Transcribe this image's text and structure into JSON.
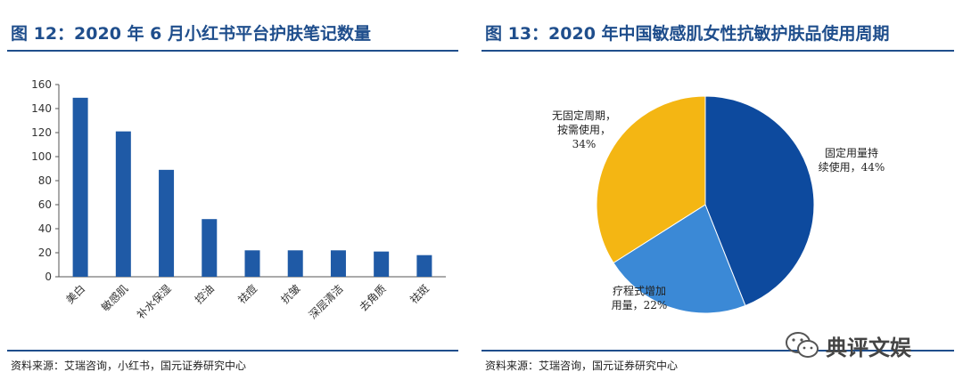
{
  "left": {
    "title": "图 12：2020 年 6 月小红书平台护肤笔记数量",
    "source": "资料来源：艾瑞咨询，小红书，国元证券研究中心"
  },
  "right": {
    "title": "图 13：2020 年中国敏感肌女性抗敏护肤品使用周期",
    "source": "资料来源：艾瑞咨询，国元证券研究中心"
  },
  "watermark": {
    "text": "典评文娱",
    "icon": "wechat-icon"
  },
  "colors": {
    "title": "#1f4e8c",
    "bar": "#1f5aa6",
    "pie1": "#0d4a9e",
    "pie2": "#3b89d6",
    "pie3": "#f4b613"
  },
  "chart_data": [
    {
      "type": "bar",
      "title": "",
      "categories": [
        "美白",
        "敏感肌",
        "补水保湿",
        "控油",
        "祛痘",
        "抗皱",
        "深层清洁",
        "去角质",
        "祛斑"
      ],
      "values": [
        149,
        121,
        89,
        48,
        22,
        22,
        22,
        21,
        18
      ],
      "yticks": [
        "0",
        "20",
        "40",
        "60",
        "80",
        "100",
        "120",
        "140",
        "160"
      ],
      "ylim": [
        0,
        160
      ],
      "grid": false,
      "legend": "none"
    },
    {
      "type": "pie",
      "title": "",
      "slices": [
        {
          "label": "固定用量持续使用，44%",
          "lines": [
            "固定用量持",
            "续使用，44%"
          ],
          "value": 44
        },
        {
          "label": "疗程式增加用量，22%",
          "lines": [
            "疗程式增加",
            "用量，22%"
          ],
          "value": 22
        },
        {
          "label": "无固定周期，按需使用，34%",
          "lines": [
            "无固定周期，",
            "按需使用，",
            "34%"
          ],
          "value": 34
        }
      ],
      "legend": "none"
    }
  ]
}
